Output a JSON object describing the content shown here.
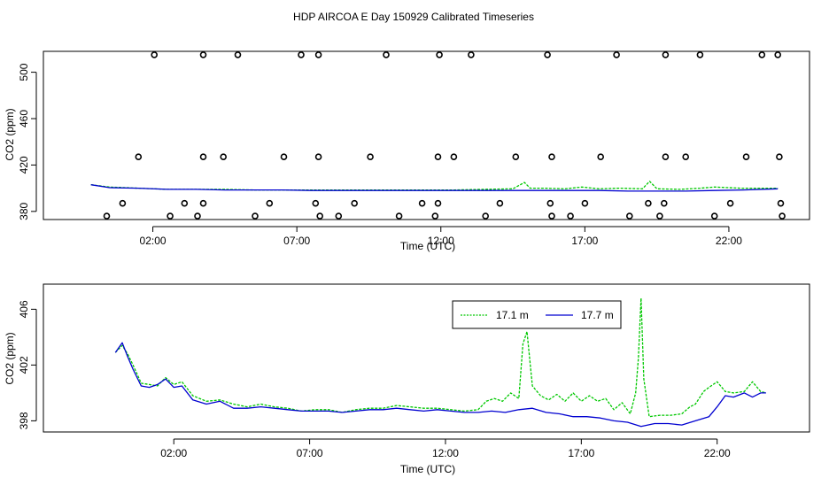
{
  "title": "HDP AIRCOA E  Day 150929  Calibrated Timeseries",
  "colors": {
    "green": "#00c800",
    "blue": "#0000d0",
    "black": "#000000"
  },
  "chart_data": [
    {
      "type": "line",
      "xlabel": "Time (UTC)",
      "ylabel": "CO2 (ppm)",
      "x_ticks": [
        2,
        7,
        12,
        17,
        22
      ],
      "x_tick_labels": [
        "02:00",
        "07:00",
        "12:00",
        "17:00",
        "22:00"
      ],
      "xlim": [
        -1.8,
        24.8
      ],
      "y_ticks": [
        380,
        420,
        460,
        500
      ],
      "ylim": [
        373,
        518
      ],
      "grid": false,
      "series": [
        {
          "color": "green",
          "x": [
            -0.15,
            0.5,
            1.5,
            2.5,
            3.5,
            4.5,
            5.5,
            6.5,
            7.5,
            8.5,
            9.5,
            10.5,
            11.5,
            12.5,
            13.5,
            14.5,
            14.9,
            15.1,
            15.6,
            16.3,
            16.9,
            17.5,
            18.2,
            19.0,
            19.25,
            19.5,
            20.3,
            21.0,
            21.5,
            22.4,
            23.0,
            23.7
          ],
          "y": [
            403,
            401,
            400,
            399,
            399,
            399,
            398.5,
            398.5,
            398.5,
            398.5,
            398.5,
            398.5,
            398.5,
            398.5,
            399,
            399.5,
            405,
            400,
            400,
            399.5,
            401,
            399.5,
            400,
            399.5,
            406,
            399.5,
            399,
            400,
            401,
            400,
            400,
            400
          ]
        },
        {
          "color": "blue",
          "x": [
            -0.15,
            0.5,
            1.5,
            2.5,
            3.5,
            4.5,
            5.5,
            6.5,
            7.5,
            8.5,
            9.5,
            10.5,
            11.5,
            12.5,
            13.5,
            14.5,
            15.5,
            16.5,
            17.5,
            18.5,
            19.5,
            20.5,
            21.5,
            22.5,
            23.7
          ],
          "y": [
            403,
            400.5,
            400,
            399,
            399,
            398.5,
            398.5,
            398.5,
            398,
            398,
            398,
            398,
            398,
            398,
            398,
            398,
            398,
            398,
            398,
            397.5,
            397.5,
            397.5,
            398,
            398.5,
            399.5
          ]
        },
        {
          "color": "black",
          "markers": "open-circle",
          "x": [
            0.4,
            0.95,
            1.5,
            2.05,
            2.6,
            3.1,
            3.55,
            3.75,
            3.75,
            3.75,
            4.45,
            4.95,
            5.55,
            6.05,
            6.55,
            7.15,
            7.65,
            7.75,
            7.75,
            7.8,
            8.45,
            9.0,
            9.55,
            10.1,
            10.55,
            11.35,
            11.8,
            11.9,
            11.9,
            11.95,
            12.45,
            13.05,
            13.55,
            14.05,
            14.6,
            15.7,
            15.8,
            15.85,
            15.85,
            16.5,
            17.0,
            17.55,
            18.1,
            18.55,
            19.2,
            19.6,
            19.75,
            19.8,
            19.8,
            20.5,
            21.0,
            21.5,
            22.05,
            22.6,
            23.15,
            23.7,
            23.75,
            23.8,
            23.85
          ],
          "y": [
            376,
            387,
            427,
            515,
            376,
            387,
            376,
            387,
            427,
            515,
            427,
            515,
            376,
            387,
            427,
            515,
            387,
            427,
            515,
            376,
            376,
            387,
            427,
            515,
            376,
            387,
            376,
            387,
            427,
            515,
            427,
            515,
            376,
            387,
            427,
            515,
            387,
            427,
            376,
            376,
            387,
            427,
            515,
            376,
            387,
            376,
            387,
            427,
            515,
            427,
            515,
            376,
            387,
            427,
            515,
            515,
            427,
            387,
            376
          ]
        }
      ]
    },
    {
      "type": "line",
      "xlabel": "Time (UTC)",
      "ylabel": "CO2 (ppm)",
      "x_ticks": [
        2,
        7,
        12,
        17,
        22
      ],
      "x_tick_labels": [
        "02:00",
        "07:00",
        "12:00",
        "17:00",
        "22:00"
      ],
      "xlim": [
        -2.8,
        25.4
      ],
      "y_ticks": [
        398,
        402,
        406
      ],
      "ylim": [
        397.2,
        407.8
      ],
      "grid": false,
      "legend": {
        "placement": "top-center"
      },
      "series": [
        {
          "name": "17.1 m",
          "color": "green",
          "x": [
            -0.15,
            0.1,
            0.3,
            0.5,
            0.8,
            1.1,
            1.4,
            1.7,
            2.0,
            2.3,
            2.7,
            3.2,
            3.7,
            4.2,
            4.7,
            5.2,
            5.7,
            6.2,
            6.7,
            7.2,
            7.7,
            8.2,
            8.7,
            9.2,
            9.7,
            10.2,
            10.7,
            11.2,
            11.7,
            12.2,
            12.7,
            13.2,
            13.5,
            13.8,
            14.1,
            14.4,
            14.7,
            14.85,
            15.0,
            15.2,
            15.5,
            15.8,
            16.1,
            16.4,
            16.7,
            17.0,
            17.3,
            17.6,
            17.9,
            18.2,
            18.5,
            18.8,
            19.0,
            19.1,
            19.2,
            19.3,
            19.5,
            19.9,
            20.3,
            20.7,
            21.0,
            21.2,
            21.5,
            21.7,
            22.0,
            22.3,
            22.6,
            23.0,
            23.3,
            23.6,
            23.8
          ],
          "y": [
            402.9,
            403.4,
            402.8,
            402.0,
            400.7,
            400.6,
            400.5,
            401.1,
            400.6,
            400.8,
            399.8,
            399.4,
            399.5,
            399.2,
            399.0,
            399.2,
            399.0,
            398.9,
            398.7,
            398.8,
            398.8,
            398.6,
            398.8,
            398.9,
            398.9,
            399.1,
            399.0,
            398.9,
            398.9,
            398.8,
            398.7,
            398.8,
            399.4,
            399.6,
            399.4,
            400.0,
            399.6,
            403.5,
            404.4,
            400.5,
            399.8,
            399.5,
            399.9,
            399.4,
            400.0,
            399.4,
            399.8,
            399.4,
            399.6,
            398.8,
            399.3,
            398.5,
            400.0,
            402.5,
            406.8,
            401.0,
            398.3,
            398.4,
            398.4,
            398.5,
            399.0,
            399.2,
            400.1,
            400.4,
            400.8,
            400.1,
            400.0,
            400.1,
            400.8,
            400.1,
            400.0
          ]
        },
        {
          "name": "17.7 m",
          "color": "blue",
          "x": [
            -0.15,
            0.1,
            0.3,
            0.5,
            0.8,
            1.1,
            1.4,
            1.7,
            2.0,
            2.3,
            2.7,
            3.2,
            3.7,
            4.2,
            4.7,
            5.2,
            5.7,
            6.2,
            6.7,
            7.2,
            7.7,
            8.2,
            8.7,
            9.2,
            9.7,
            10.2,
            10.7,
            11.2,
            11.7,
            12.2,
            12.7,
            13.2,
            13.7,
            14.2,
            14.7,
            15.2,
            15.7,
            16.2,
            16.7,
            17.2,
            17.7,
            18.2,
            18.7,
            19.2,
            19.7,
            20.2,
            20.7,
            21.2,
            21.7,
            22.0,
            22.3,
            22.6,
            23.0,
            23.3,
            23.6,
            23.8
          ],
          "y": [
            402.9,
            403.6,
            402.6,
            401.7,
            400.5,
            400.4,
            400.6,
            401.0,
            400.4,
            400.5,
            399.5,
            399.2,
            399.4,
            398.9,
            398.9,
            399.0,
            398.9,
            398.8,
            398.7,
            398.7,
            398.7,
            398.6,
            398.7,
            398.8,
            398.8,
            398.9,
            398.8,
            398.7,
            398.8,
            398.7,
            398.6,
            398.6,
            398.7,
            398.6,
            398.8,
            398.9,
            398.6,
            398.5,
            398.3,
            398.3,
            398.2,
            398.0,
            397.9,
            397.6,
            397.8,
            397.8,
            397.7,
            398.0,
            398.3,
            399.0,
            399.8,
            399.7,
            400.0,
            399.7,
            400.0,
            400.0
          ]
        }
      ]
    }
  ]
}
